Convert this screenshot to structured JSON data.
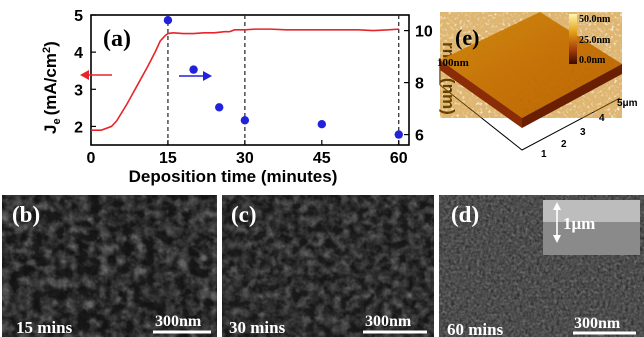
{
  "chart_data": {
    "type": "line",
    "panel_label": "(a)",
    "xlabel": "Deposition time (minutes)",
    "ylabel_left": "J",
    "ylabel_left_sub": "e",
    "ylabel_left_unit": "(mA/cm",
    "ylabel_left_sup": "2",
    "ylabel_left_close": ")",
    "ylabel_right": "rms (nm)",
    "xlim": [
      0,
      62
    ],
    "ylim_left": [
      1.5,
      5
    ],
    "ylim_right": [
      5.6,
      10.6
    ],
    "x_ticks": [
      "0",
      "15",
      "30",
      "45",
      "60"
    ],
    "x_tick_values": [
      0,
      15,
      30,
      45,
      60
    ],
    "y_left_ticks": [
      "2",
      "3",
      "4",
      "5"
    ],
    "y_left_tick_values": [
      2,
      3,
      4,
      5
    ],
    "y_right_ticks": [
      "6",
      "8",
      "10"
    ],
    "y_right_tick_values": [
      6,
      8,
      10
    ],
    "dashed_x": [
      15,
      30,
      60
    ],
    "series": [
      {
        "axis": "left",
        "color": "#e8242a",
        "x": [
          0,
          2,
          4,
          5,
          7,
          9,
          11,
          12.5,
          13.5,
          14.5,
          15,
          16,
          18,
          20,
          22,
          24,
          26,
          27,
          28,
          29,
          30,
          32,
          35,
          38,
          42,
          45,
          48,
          52,
          55,
          58,
          60
        ],
        "y": [
          1.9,
          1.9,
          2.0,
          2.15,
          2.6,
          3.1,
          3.6,
          4.0,
          4.3,
          4.45,
          4.5,
          4.52,
          4.5,
          4.5,
          4.52,
          4.52,
          4.55,
          4.55,
          4.6,
          4.6,
          4.6,
          4.62,
          4.62,
          4.6,
          4.6,
          4.6,
          4.6,
          4.6,
          4.58,
          4.6,
          4.62
        ]
      },
      {
        "axis": "right",
        "color": "#2222dd",
        "x": [
          15,
          20,
          25,
          30,
          45,
          60
        ],
        "y": [
          10.4,
          8.5,
          7.05,
          6.55,
          6.4,
          6.0
        ]
      }
    ],
    "arrow_colors": {
      "left": "#e8242a",
      "right": "#2222dd"
    }
  },
  "afm": {
    "panel_label": "(e)",
    "colorbar_labels": [
      "50.0nm",
      "25.0nm",
      "0.0nm"
    ],
    "z_label": "100nm",
    "axis_unit_label": "5μm",
    "axis_ticks": [
      "1",
      "2",
      "3",
      "4"
    ]
  },
  "sem_panels": [
    {
      "panel_label": "(b)",
      "time_label": "15 mins",
      "scale_label": "300nm",
      "inset_label": ""
    },
    {
      "panel_label": "(c)",
      "time_label": "30 mins",
      "scale_label": "300nm",
      "inset_label": ""
    },
    {
      "panel_label": "(d)",
      "time_label": "60 mins",
      "scale_label": "300nm",
      "inset_label": "1μm"
    }
  ]
}
